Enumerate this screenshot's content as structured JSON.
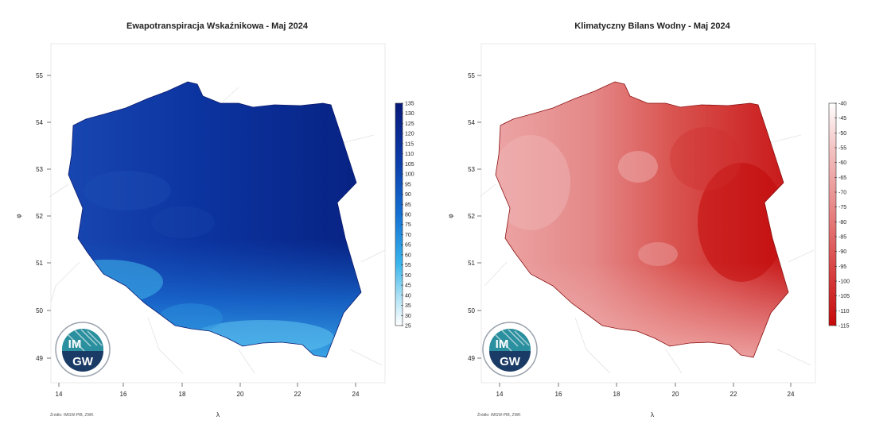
{
  "panels": [
    {
      "title": "Ewapotranspiracja Wskaźnikowa - Maj 2024",
      "y_axis_symbol": "φ",
      "x_axis_symbol": "λ",
      "x_ticks": [
        "14",
        "16",
        "18",
        "20",
        "22",
        "24"
      ],
      "y_ticks": [
        "55",
        "54",
        "53",
        "52",
        "51",
        "50",
        "49"
      ],
      "legend_labels": [
        "135",
        "130",
        "125",
        "120",
        "115",
        "110",
        "105",
        "100",
        "95",
        "90",
        "85",
        "80",
        "75",
        "70",
        "65",
        "60",
        "55",
        "50",
        "45",
        "40",
        "35",
        "30",
        "25"
      ],
      "legend_colors": [
        "#0a1a7e",
        "#0b3aa8",
        "#1269cf",
        "#3ab6ec",
        "#b9e6f7",
        "#ffffff"
      ],
      "source_text": "Źródło: IMGW-PIB, ZWK",
      "logo": {
        "top": "IM",
        "bottom": "GW"
      }
    },
    {
      "title": "Klimatyczny Bilans Wodny - Maj 2024",
      "y_axis_symbol": "φ",
      "x_axis_symbol": "λ",
      "x_ticks": [
        "14",
        "16",
        "18",
        "20",
        "22",
        "24"
      ],
      "y_ticks": [
        "55",
        "54",
        "53",
        "52",
        "51",
        "50",
        "49"
      ],
      "legend_labels": [
        "-40",
        "-45",
        "-50",
        "-55",
        "-60",
        "-65",
        "-70",
        "-75",
        "-80",
        "-85",
        "-90",
        "-95",
        "-100",
        "-105",
        "-110",
        "-115"
      ],
      "legend_colors": [
        "#ffffff",
        "#f5c7c7",
        "#e98c8c",
        "#dc4f4f",
        "#c80a0a"
      ],
      "source_text": "Źródło: IMGW-PIB, ZWK",
      "logo": {
        "top": "IM",
        "bottom": "GW"
      }
    }
  ]
}
